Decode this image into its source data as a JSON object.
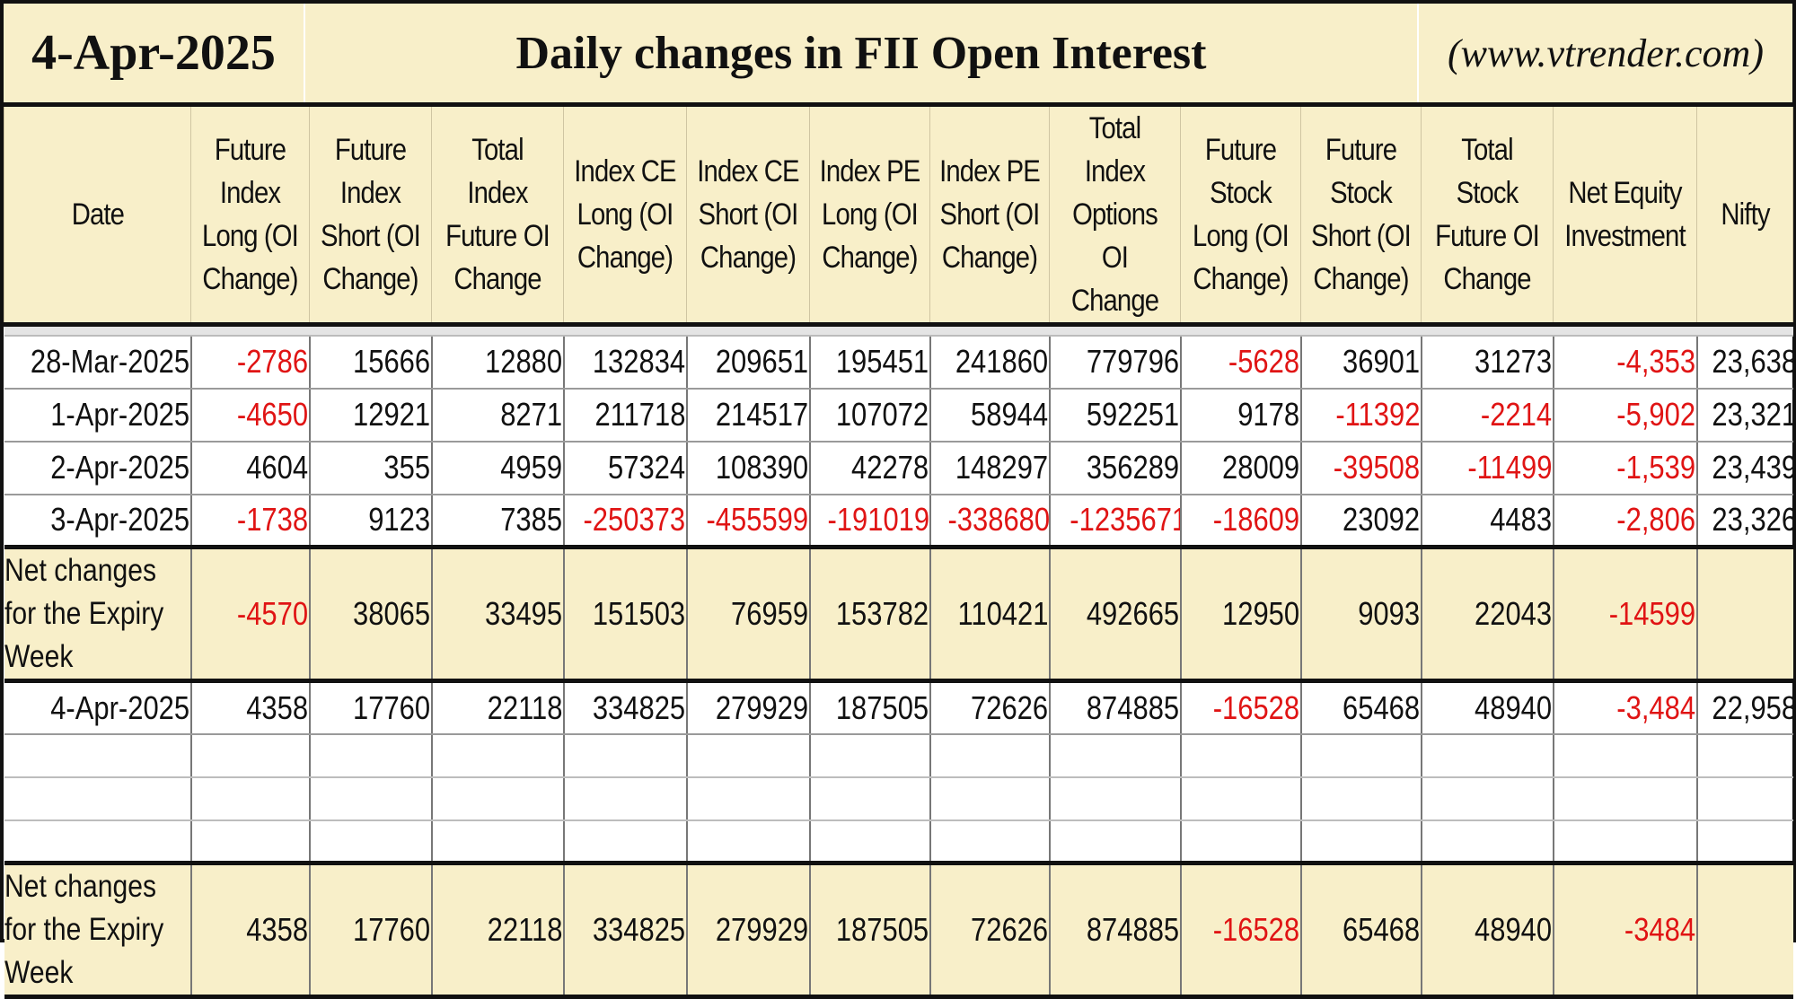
{
  "header": {
    "date": "4-Apr-2025",
    "title": "Daily changes in FII Open Interest",
    "website": "(www.vtrender.com)"
  },
  "columns": [
    "Date",
    "Future Index Long (OI Change)",
    "Future Index Short (OI Change)",
    "Total Index Future OI Change",
    "Index CE Long (OI Change)",
    "Index CE Short (OI Change)",
    "Index PE Long (OI Change)",
    "Index PE Short (OI Change)",
    "Total Index Options OI Change",
    "Future Stock Long (OI Change)",
    "Future Stock Short (OI Change)",
    "Total Stock Future OI Change",
    "Net Equity Investment",
    "Nifty"
  ],
  "rows": [
    [
      "28-Mar-2025",
      "-2786",
      "15666",
      "12880",
      "132834",
      "209651",
      "195451",
      "241860",
      "779796",
      "-5628",
      "36901",
      "31273",
      "-4,353",
      "23,638"
    ],
    [
      "1-Apr-2025",
      "-4650",
      "12921",
      "8271",
      "211718",
      "214517",
      "107072",
      "58944",
      "592251",
      "9178",
      "-11392",
      "-2214",
      "-5,902",
      "23,321"
    ],
    [
      "2-Apr-2025",
      "4604",
      "355",
      "4959",
      "57324",
      "108390",
      "42278",
      "148297",
      "356289",
      "28009",
      "-39508",
      "-11499",
      "-1,539",
      "23,439"
    ],
    [
      "3-Apr-2025",
      "-1738",
      "9123",
      "7385",
      "-250373",
      "-455599",
      "-191019",
      "-338680",
      "-1235671",
      "-18609",
      "23092",
      "4483",
      "-2,806",
      "23,326"
    ]
  ],
  "net_prev": [
    "Net changes for the Expiry Week",
    "-4570",
    "38065",
    "33495",
    "151503",
    "76959",
    "153782",
    "110421",
    "492665",
    "12950",
    "9093",
    "22043",
    "-14599",
    ""
  ],
  "current_row": [
    "4-Apr-2025",
    "4358",
    "17760",
    "22118",
    "334825",
    "279929",
    "187505",
    "72626",
    "874885",
    "-16528",
    "65468",
    "48940",
    "-3,484",
    "22,958"
  ],
  "net_current": [
    "Net changes for the Expiry Week",
    "4358",
    "17760",
    "22118",
    "334825",
    "279929",
    "187505",
    "72626",
    "874885",
    "-16528",
    "65468",
    "48940",
    "-3484",
    ""
  ],
  "colors": {
    "negative": "#e01414",
    "header_bg": "#f8efc9",
    "text": "#111111"
  }
}
